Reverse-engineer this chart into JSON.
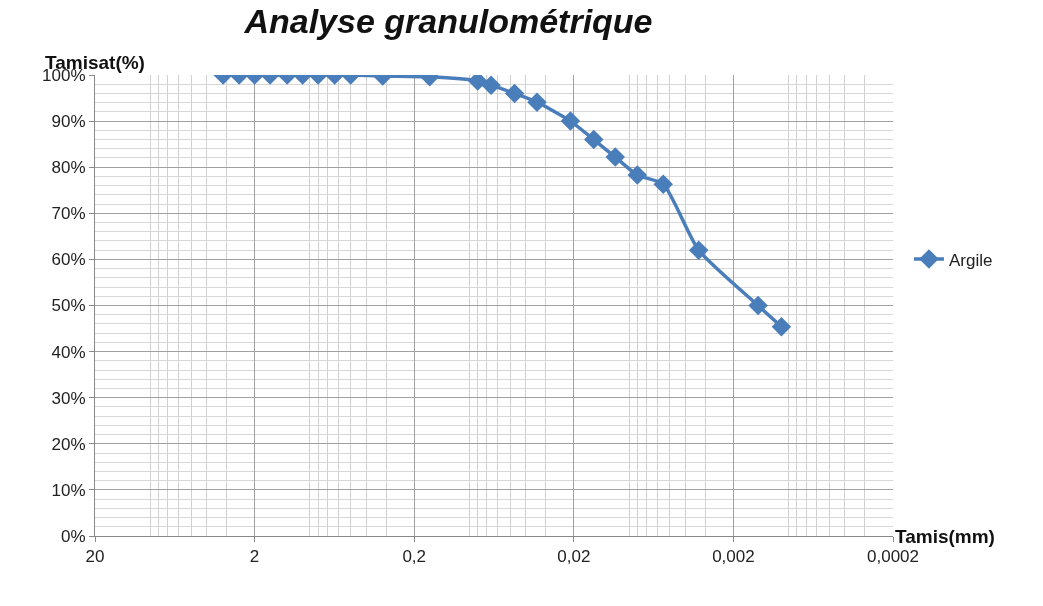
{
  "chart_data": {
    "type": "line",
    "title": "Analyse granulométrique",
    "xlabel": "Tamis(mm)",
    "ylabel": "Tamisat(%)",
    "log": "x",
    "xlim": [
      20,
      0.0002
    ],
    "xticks": [
      20,
      2,
      {
        "value": 0.2,
        "label": "0,2"
      },
      {
        "value": 0.02,
        "label": "0,02"
      },
      {
        "value": 0.002,
        "label": "0,002"
      },
      {
        "value": 0.0002,
        "label": "0,0002"
      }
    ],
    "ylim": [
      0,
      100
    ],
    "yticks": [
      {
        "value": 0,
        "label": "0%"
      },
      {
        "value": 10,
        "label": "10%"
      },
      {
        "value": 20,
        "label": "20%"
      },
      {
        "value": 30,
        "label": "30%"
      },
      {
        "value": 40,
        "label": "40%"
      },
      {
        "value": 50,
        "label": "50%"
      },
      {
        "value": 60,
        "label": "60%"
      },
      {
        "value": 70,
        "label": "70%"
      },
      {
        "value": 80,
        "label": "80%"
      },
      {
        "value": 90,
        "label": "90%"
      },
      {
        "value": 100,
        "label": "100%"
      }
    ],
    "grid": true,
    "legend": "right",
    "marker": "diamond",
    "line_style": "solid",
    "series": [
      {
        "name": "Argile",
        "color": "#4a7ebb",
        "x": [
          3.15,
          2.5,
          2,
          1.6,
          1.25,
          1.0,
          0.8,
          0.63,
          0.5,
          0.315,
          0.16,
          0.08,
          0.066,
          0.047,
          0.034,
          0.021,
          0.015,
          0.011,
          0.008,
          0.0055,
          0.0033,
          0.0014,
          0.001
        ],
        "values": [
          100,
          100,
          100,
          100,
          100,
          100,
          100,
          100,
          100,
          99.8,
          99.6,
          98.7,
          97.8,
          96,
          94.1,
          90,
          86,
          82.2,
          78.3,
          76.3,
          62,
          50,
          45.4
        ]
      }
    ]
  }
}
